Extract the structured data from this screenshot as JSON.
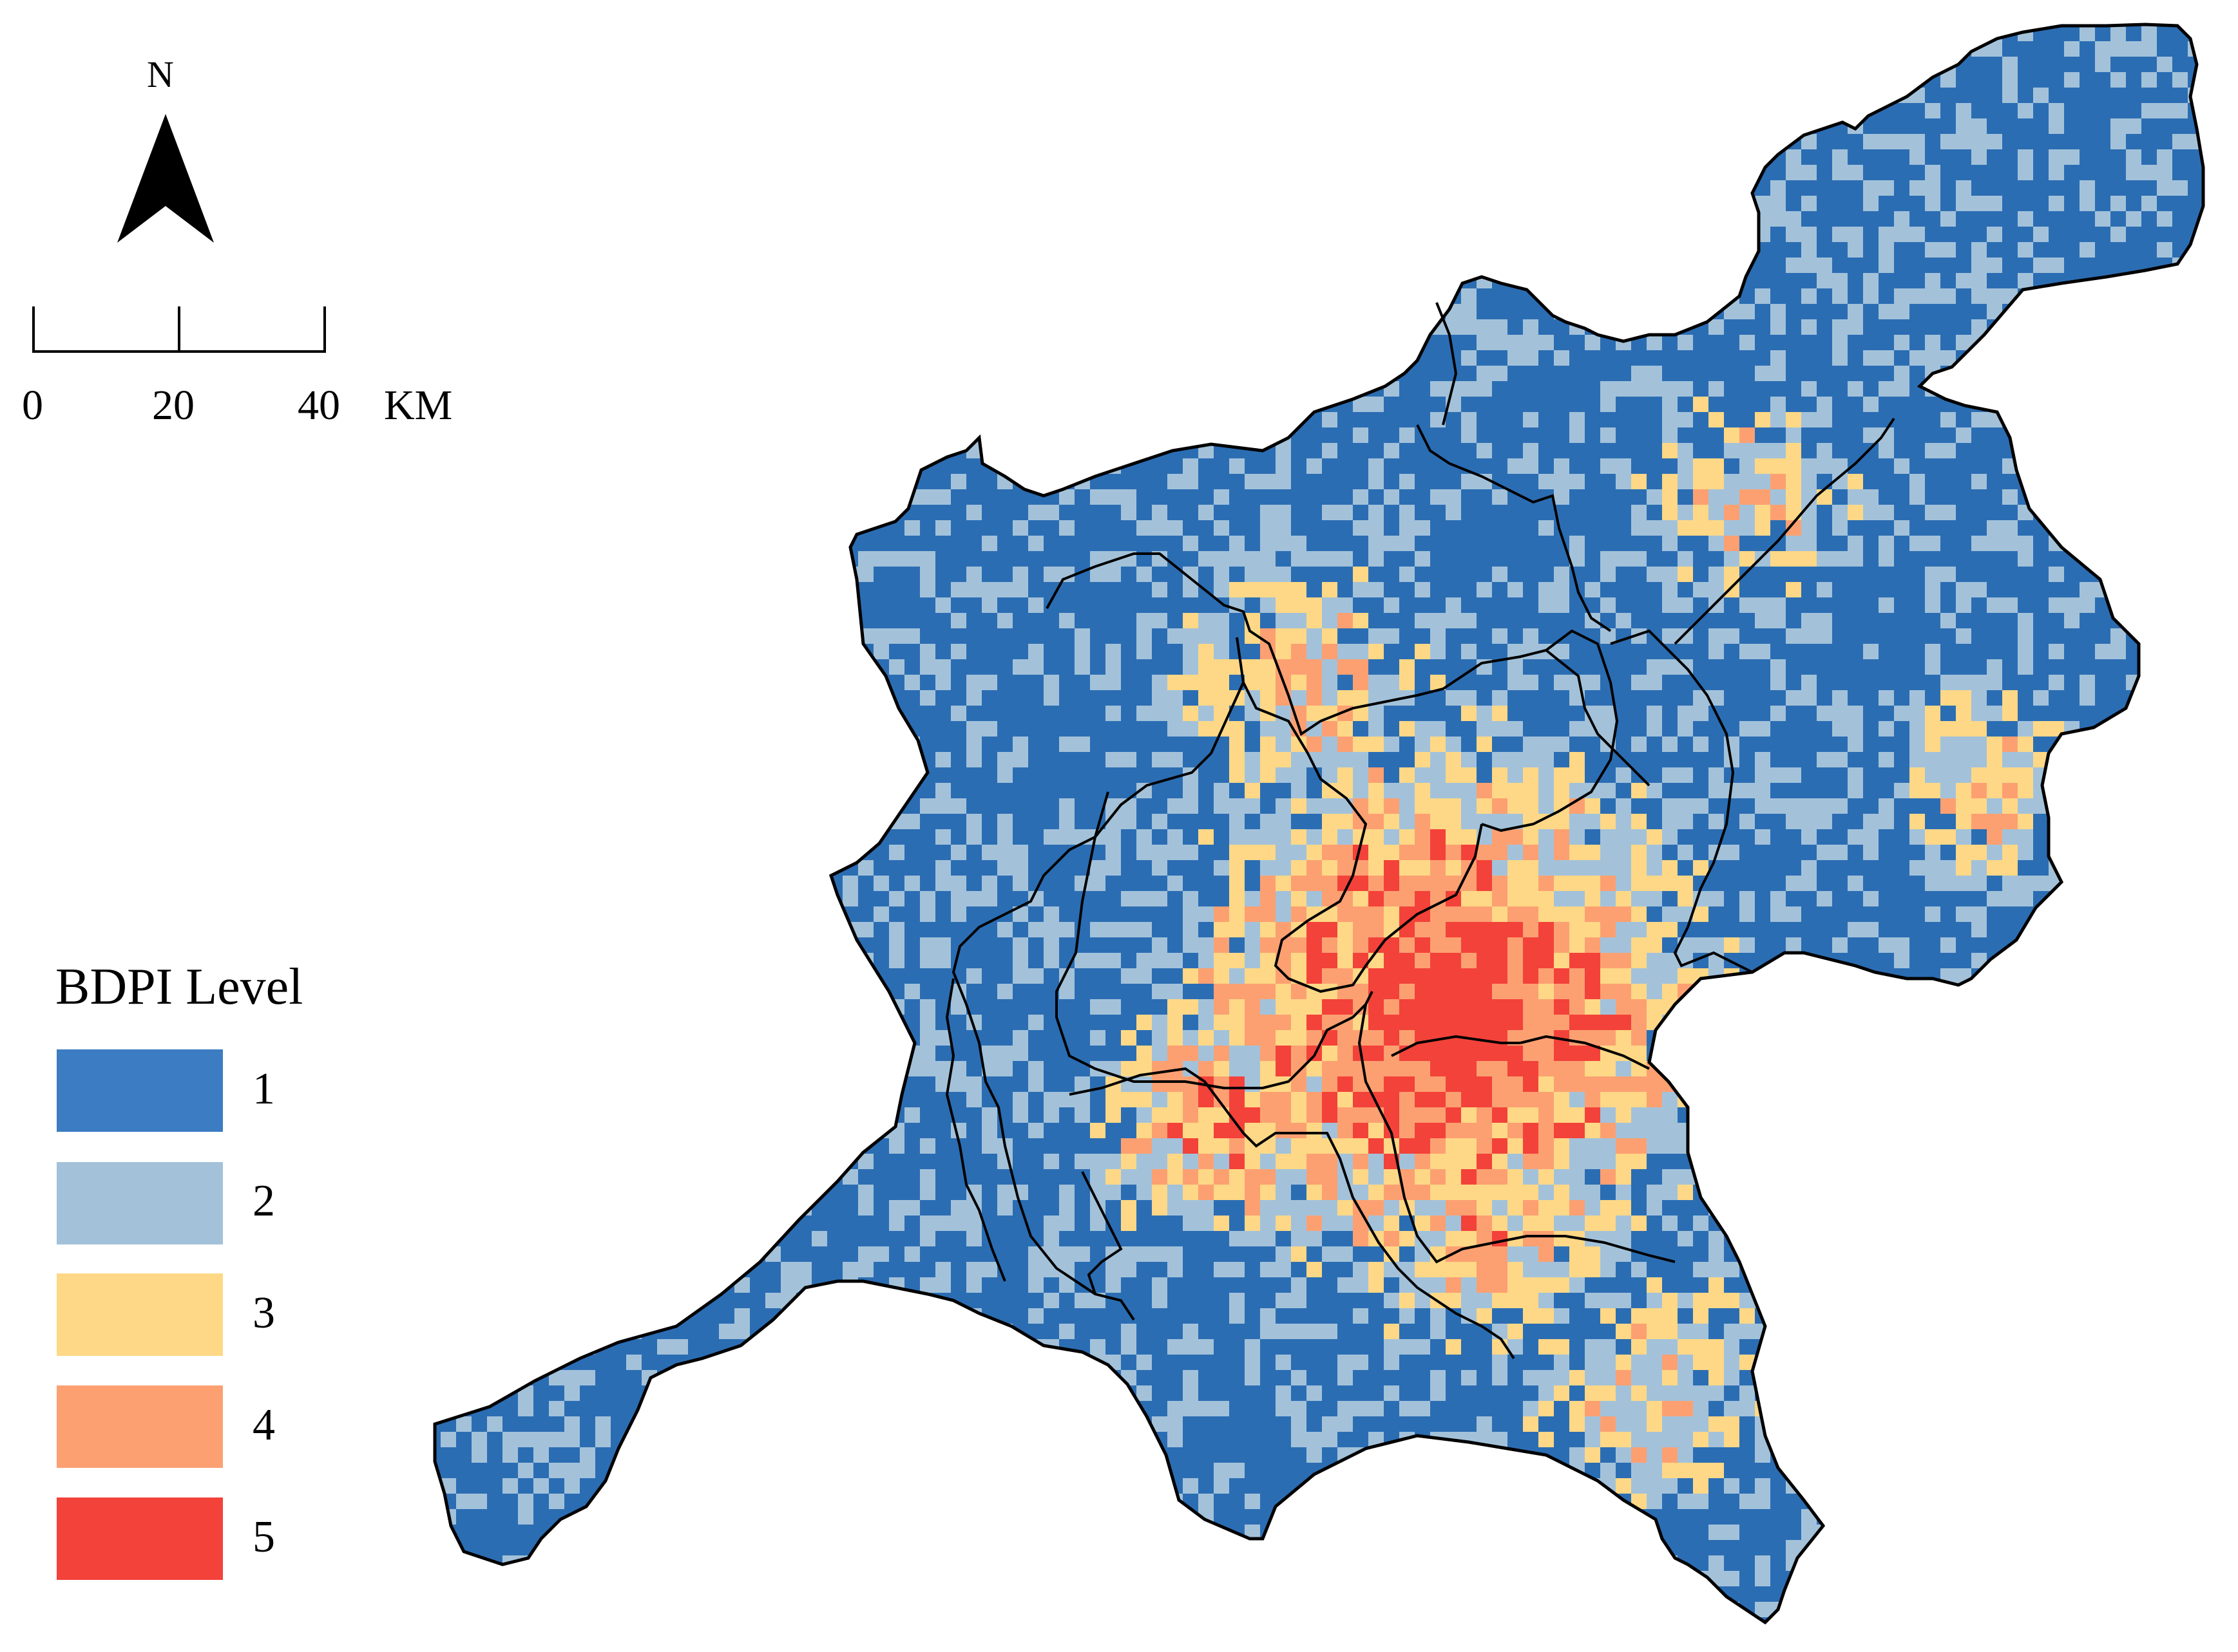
{
  "north_arrow": {
    "label": "N",
    "icon": "north-arrow-icon"
  },
  "scale_bar": {
    "ticks": [
      "0",
      "20",
      "40"
    ],
    "unit": "KM"
  },
  "legend": {
    "title": "BDPI Level",
    "items": [
      {
        "label": "1",
        "color": "#3c7cc2"
      },
      {
        "label": "2",
        "color": "#a3c2da"
      },
      {
        "label": "3",
        "color": "#fed886"
      },
      {
        "label": "4",
        "color": "#fca072"
      },
      {
        "label": "5",
        "color": "#f3423a"
      }
    ]
  },
  "map": {
    "background_color": "#2b6db3",
    "district_boundary_color": "#000000"
  }
}
